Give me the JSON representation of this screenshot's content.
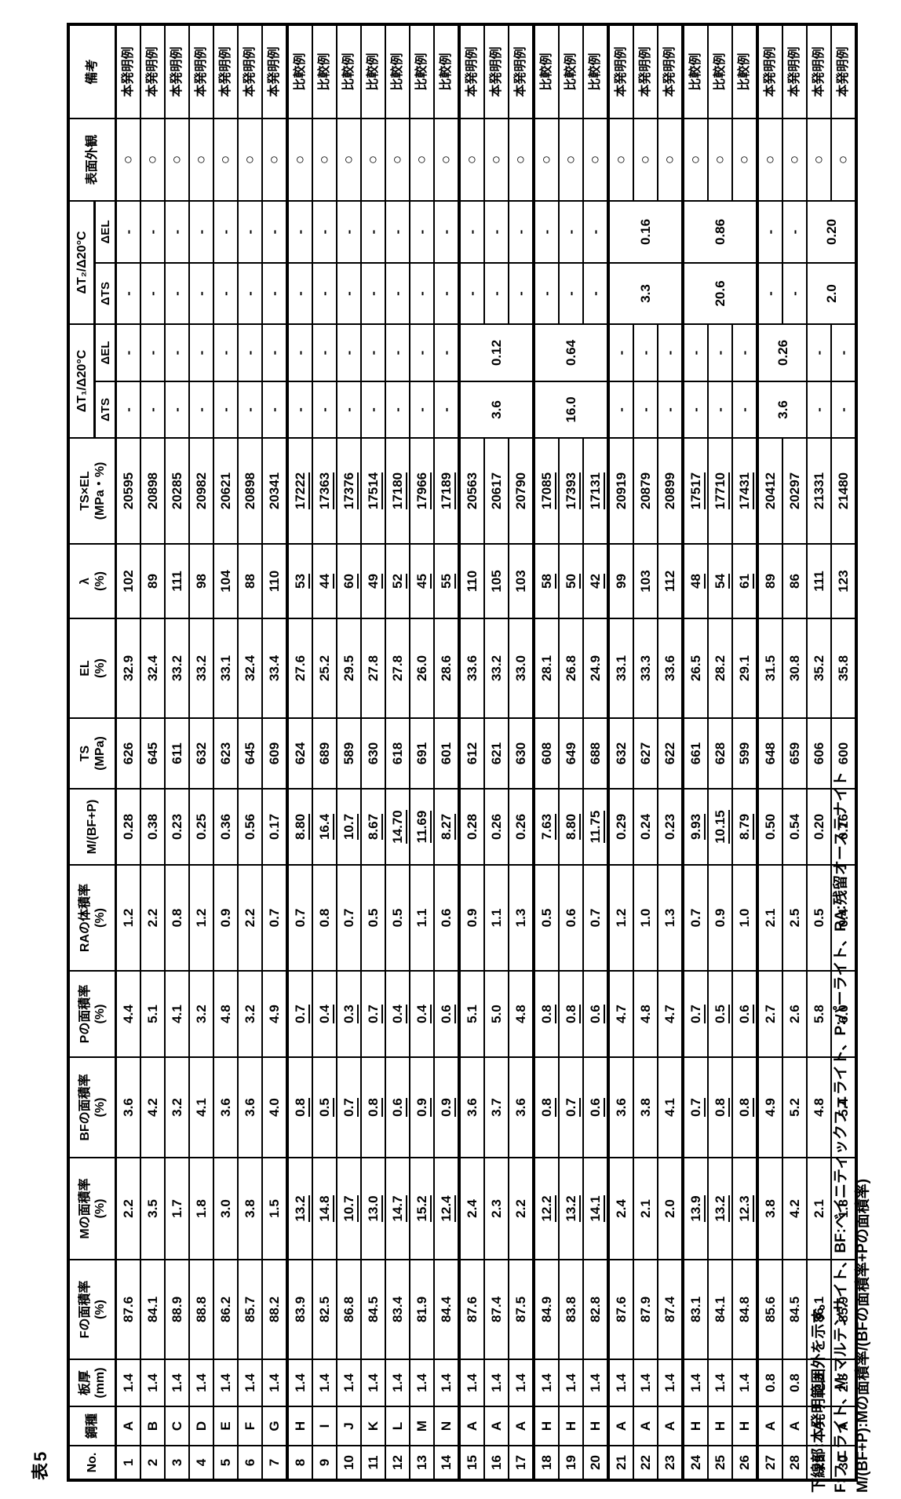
{
  "title": "表5",
  "table": {
    "headers": {
      "no": "No.",
      "steel": "鋼種",
      "thickness": [
        "板厚",
        "(mm)"
      ],
      "f": [
        "Fの面積率",
        "(%)"
      ],
      "m": [
        "Mの面積率",
        "(%)"
      ],
      "bf": [
        "BFの面積率",
        "(%)"
      ],
      "p": [
        "Pの面積率",
        "(%)"
      ],
      "ra": [
        "RAの体積率",
        "(%)"
      ],
      "mbfp": "M/(BF+P)",
      "ts": [
        "TS",
        "(MPa)"
      ],
      "el": [
        "EL",
        "(%)"
      ],
      "lambda": [
        "λ",
        "(%)"
      ],
      "tsel": [
        "TS×EL",
        "(MPa・%)"
      ],
      "dt1": "ΔT₁/Δ20°C",
      "dt2": "ΔT₂/Δ20°C",
      "dts": "ΔTS",
      "del": "ΔEL",
      "surface": "表面外観",
      "remarks": "備考"
    },
    "rows": [
      {
        "no": "1",
        "steel": "A",
        "t": "1.4",
        "f": "87.6",
        "m": "2.2",
        "bf": "3.6",
        "p": "4.4",
        "ra": "1.2",
        "mbfp": "0.28",
        "ts": "626",
        "el": "32.9",
        "lam": "102",
        "tsel": "20595",
        "surf": "○",
        "rem": "本発明例",
        "ul": false
      },
      {
        "no": "2",
        "steel": "B",
        "t": "1.4",
        "f": "84.1",
        "m": "3.5",
        "bf": "4.2",
        "p": "5.1",
        "ra": "2.2",
        "mbfp": "0.38",
        "ts": "645",
        "el": "32.4",
        "lam": "89",
        "tsel": "20898",
        "surf": "○",
        "rem": "本発明例",
        "ul": false
      },
      {
        "no": "3",
        "steel": "C",
        "t": "1.4",
        "f": "88.9",
        "m": "1.7",
        "bf": "3.2",
        "p": "4.1",
        "ra": "0.8",
        "mbfp": "0.23",
        "ts": "611",
        "el": "33.2",
        "lam": "111",
        "tsel": "20285",
        "surf": "○",
        "rem": "本発明例",
        "ul": false
      },
      {
        "no": "4",
        "steel": "D",
        "t": "1.4",
        "f": "88.8",
        "m": "1.8",
        "bf": "4.1",
        "p": "3.2",
        "ra": "1.2",
        "mbfp": "0.25",
        "ts": "632",
        "el": "33.2",
        "lam": "98",
        "tsel": "20982",
        "surf": "○",
        "rem": "本発明例",
        "ul": false
      },
      {
        "no": "5",
        "steel": "E",
        "t": "1.4",
        "f": "86.2",
        "m": "3.0",
        "bf": "3.6",
        "p": "4.8",
        "ra": "0.9",
        "mbfp": "0.36",
        "ts": "623",
        "el": "33.1",
        "lam": "104",
        "tsel": "20621",
        "surf": "○",
        "rem": "本発明例",
        "ul": false
      },
      {
        "no": "6",
        "steel": "F",
        "t": "1.4",
        "f": "85.7",
        "m": "3.8",
        "bf": "3.6",
        "p": "3.2",
        "ra": "2.2",
        "mbfp": "0.56",
        "ts": "645",
        "el": "32.4",
        "lam": "88",
        "tsel": "20898",
        "surf": "○",
        "rem": "本発明例",
        "ul": false
      },
      {
        "no": "7",
        "steel": "G",
        "t": "1.4",
        "f": "88.2",
        "m": "1.5",
        "bf": "4.0",
        "p": "4.9",
        "ra": "0.7",
        "mbfp": "0.17",
        "ts": "609",
        "el": "33.4",
        "lam": "110",
        "tsel": "20341",
        "surf": "○",
        "rem": "本発明例",
        "ul": false
      },
      {
        "no": "8",
        "steel": "H",
        "t": "1.4",
        "f": "83.9",
        "m": "13.2",
        "bf": "0.8",
        "p": "0.7",
        "ra": "0.7",
        "mbfp": "8.80",
        "ts": "624",
        "el": "27.6",
        "lam": "53",
        "tsel": "17222",
        "surf": "○",
        "rem": "比較例",
        "ul": true
      },
      {
        "no": "9",
        "steel": "I",
        "t": "1.4",
        "f": "82.5",
        "m": "14.8",
        "bf": "0.5",
        "p": "0.4",
        "ra": "0.8",
        "mbfp": "16.4",
        "ts": "689",
        "el": "25.2",
        "lam": "44",
        "tsel": "17363",
        "surf": "○",
        "rem": "比較例",
        "ul": true
      },
      {
        "no": "10",
        "steel": "J",
        "t": "1.4",
        "f": "86.8",
        "m": "10.7",
        "bf": "0.7",
        "p": "0.3",
        "ra": "0.7",
        "mbfp": "10.7",
        "ts": "589",
        "el": "29.5",
        "lam": "60",
        "tsel": "17376",
        "surf": "○",
        "rem": "比較例",
        "ul": true
      },
      {
        "no": "11",
        "steel": "K",
        "t": "1.4",
        "f": "84.5",
        "m": "13.0",
        "bf": "0.8",
        "p": "0.7",
        "ra": "0.5",
        "mbfp": "8.67",
        "ts": "630",
        "el": "27.8",
        "lam": "49",
        "tsel": "17514",
        "surf": "○",
        "rem": "比較例",
        "ul": true
      },
      {
        "no": "12",
        "steel": "L",
        "t": "1.4",
        "f": "83.4",
        "m": "14.7",
        "bf": "0.6",
        "p": "0.4",
        "ra": "0.5",
        "mbfp": "14.70",
        "ts": "618",
        "el": "27.8",
        "lam": "52",
        "tsel": "17180",
        "surf": "○",
        "rem": "比較例",
        "ul": true
      },
      {
        "no": "13",
        "steel": "M",
        "t": "1.4",
        "f": "81.9",
        "m": "15.2",
        "bf": "0.9",
        "p": "0.4",
        "ra": "1.1",
        "mbfp": "11.69",
        "ts": "691",
        "el": "26.0",
        "lam": "45",
        "tsel": "17966",
        "surf": "○",
        "rem": "比較例",
        "ul": true
      },
      {
        "no": "14",
        "steel": "N",
        "t": "1.4",
        "f": "84.4",
        "m": "12.4",
        "bf": "0.9",
        "p": "0.6",
        "ra": "0.6",
        "mbfp": "8.27",
        "ts": "601",
        "el": "28.6",
        "lam": "55",
        "tsel": "17189",
        "surf": "○",
        "rem": "比較例",
        "ul": true
      },
      {
        "no": "15",
        "steel": "A",
        "t": "1.4",
        "f": "87.6",
        "m": "2.4",
        "bf": "3.6",
        "p": "5.1",
        "ra": "0.9",
        "mbfp": "0.28",
        "ts": "612",
        "el": "33.6",
        "lam": "110",
        "tsel": "20563",
        "surf": "○",
        "rem": "本発明例",
        "ul": false
      },
      {
        "no": "16",
        "steel": "A",
        "t": "1.4",
        "f": "87.4",
        "m": "2.3",
        "bf": "3.7",
        "p": "5.0",
        "ra": "1.1",
        "mbfp": "0.26",
        "ts": "621",
        "el": "33.2",
        "lam": "105",
        "tsel": "20617",
        "surf": "○",
        "rem": "本発明例",
        "ul": false
      },
      {
        "no": "17",
        "steel": "A",
        "t": "1.4",
        "f": "87.5",
        "m": "2.2",
        "bf": "3.6",
        "p": "4.8",
        "ra": "1.3",
        "mbfp": "0.26",
        "ts": "630",
        "el": "33.0",
        "lam": "103",
        "tsel": "20790",
        "surf": "○",
        "rem": "本発明例",
        "ul": false
      },
      {
        "no": "18",
        "steel": "H",
        "t": "1.4",
        "f": "84.9",
        "m": "12.2",
        "bf": "0.8",
        "p": "0.8",
        "ra": "0.5",
        "mbfp": "7.63",
        "ts": "608",
        "el": "28.1",
        "lam": "58",
        "tsel": "17085",
        "surf": "○",
        "rem": "比較例",
        "ul": true
      },
      {
        "no": "19",
        "steel": "H",
        "t": "1.4",
        "f": "83.8",
        "m": "13.2",
        "bf": "0.7",
        "p": "0.8",
        "ra": "0.6",
        "mbfp": "8.80",
        "ts": "649",
        "el": "26.8",
        "lam": "50",
        "tsel": "17393",
        "surf": "○",
        "rem": "比較例",
        "ul": true
      },
      {
        "no": "20",
        "steel": "H",
        "t": "1.4",
        "f": "82.8",
        "m": "14.1",
        "bf": "0.6",
        "p": "0.6",
        "ra": "0.7",
        "mbfp": "11.75",
        "ts": "688",
        "el": "24.9",
        "lam": "42",
        "tsel": "17131",
        "surf": "○",
        "rem": "比較例",
        "ul": true
      },
      {
        "no": "21",
        "steel": "A",
        "t": "1.4",
        "f": "87.6",
        "m": "2.4",
        "bf": "3.6",
        "p": "4.7",
        "ra": "1.2",
        "mbfp": "0.29",
        "ts": "632",
        "el": "33.1",
        "lam": "99",
        "tsel": "20919",
        "surf": "○",
        "rem": "本発明例",
        "ul": false
      },
      {
        "no": "22",
        "steel": "A",
        "t": "1.4",
        "f": "87.9",
        "m": "2.1",
        "bf": "3.8",
        "p": "4.8",
        "ra": "1.0",
        "mbfp": "0.24",
        "ts": "627",
        "el": "33.3",
        "lam": "103",
        "tsel": "20879",
        "surf": "○",
        "rem": "本発明例",
        "ul": false
      },
      {
        "no": "23",
        "steel": "A",
        "t": "1.4",
        "f": "87.4",
        "m": "2.0",
        "bf": "4.1",
        "p": "4.7",
        "ra": "1.3",
        "mbfp": "0.23",
        "ts": "622",
        "el": "33.6",
        "lam": "112",
        "tsel": "20899",
        "surf": "○",
        "rem": "本発明例",
        "ul": false
      },
      {
        "no": "24",
        "steel": "H",
        "t": "1.4",
        "f": "83.1",
        "m": "13.9",
        "bf": "0.7",
        "p": "0.7",
        "ra": "0.7",
        "mbfp": "9.93",
        "ts": "661",
        "el": "26.5",
        "lam": "48",
        "tsel": "17517",
        "surf": "○",
        "rem": "比較例",
        "ul": true
      },
      {
        "no": "25",
        "steel": "H",
        "t": "1.4",
        "f": "84.1",
        "m": "13.2",
        "bf": "0.8",
        "p": "0.5",
        "ra": "0.9",
        "mbfp": "10.15",
        "ts": "628",
        "el": "28.2",
        "lam": "54",
        "tsel": "17710",
        "surf": "○",
        "rem": "比較例",
        "ul": true
      },
      {
        "no": "26",
        "steel": "H",
        "t": "1.4",
        "f": "84.8",
        "m": "12.3",
        "bf": "0.8",
        "p": "0.6",
        "ra": "1.0",
        "mbfp": "8.79",
        "ts": "599",
        "el": "29.1",
        "lam": "61",
        "tsel": "17431",
        "surf": "○",
        "rem": "比較例",
        "ul": true
      },
      {
        "no": "27",
        "steel": "A",
        "t": "0.8",
        "f": "85.6",
        "m": "3.8",
        "bf": "4.9",
        "p": "2.7",
        "ra": "2.1",
        "mbfp": "0.50",
        "ts": "648",
        "el": "31.5",
        "lam": "89",
        "tsel": "20412",
        "surf": "○",
        "rem": "本発明例",
        "ul": false
      },
      {
        "no": "28",
        "steel": "A",
        "t": "0.8",
        "f": "84.5",
        "m": "4.2",
        "bf": "5.2",
        "p": "2.6",
        "ra": "2.5",
        "mbfp": "0.54",
        "ts": "659",
        "el": "30.8",
        "lam": "86",
        "tsel": "20297",
        "surf": "○",
        "rem": "本発明例",
        "ul": false
      },
      {
        "no": "29",
        "steel": "A",
        "t": "2.3",
        "f": "86.1",
        "m": "2.1",
        "bf": "4.8",
        "p": "5.8",
        "ra": "0.5",
        "mbfp": "0.20",
        "ts": "606",
        "el": "35.2",
        "lam": "111",
        "tsel": "21331",
        "surf": "○",
        "rem": "本発明例",
        "ul": false
      },
      {
        "no": "30",
        "steel": "A",
        "t": "2.3",
        "f": "85.9",
        "m": "1.8",
        "bf": "5.4",
        "p": "6.0",
        "ra": "0.4",
        "mbfp": "0.16",
        "ts": "600",
        "el": "35.8",
        "lam": "123",
        "tsel": "21480",
        "surf": "○",
        "rem": "本発明例",
        "ul": false
      }
    ],
    "dt1": [
      {
        "span": 14,
        "dts": "-",
        "del": "-",
        "each": true
      },
      {
        "span": 3,
        "dts": "3.6",
        "del": "0.12"
      },
      {
        "span": 3,
        "dts": "16.0",
        "del": "0.64"
      },
      {
        "span": 6,
        "dts": "-",
        "del": "-",
        "each": true
      },
      {
        "span": 2,
        "dts": "3.6",
        "del": "0.26"
      },
      {
        "span": 2,
        "dts": "-",
        "del": "-",
        "each": true
      }
    ],
    "dt2": [
      {
        "span": 20,
        "dts": "-",
        "del": "-",
        "each": true
      },
      {
        "span": 3,
        "dts": "3.3",
        "del": "0.16"
      },
      {
        "span": 3,
        "dts": "20.6",
        "del": "0.86"
      },
      {
        "span": 2,
        "dts": "-",
        "del": "-",
        "each": true
      },
      {
        "span": 2,
        "dts": "2.0",
        "del": "0.20"
      }
    ]
  },
  "notes": [
    "下線部:本発明範囲外を示す。",
    "F:フェライト、M:マルテンサイト、BF:ベイニティックフェライト、P:パーライト、RA:残留オーステナイト",
    "M/(BF+P):Mの面積率/(BFの面積率+Pの面積率)"
  ]
}
